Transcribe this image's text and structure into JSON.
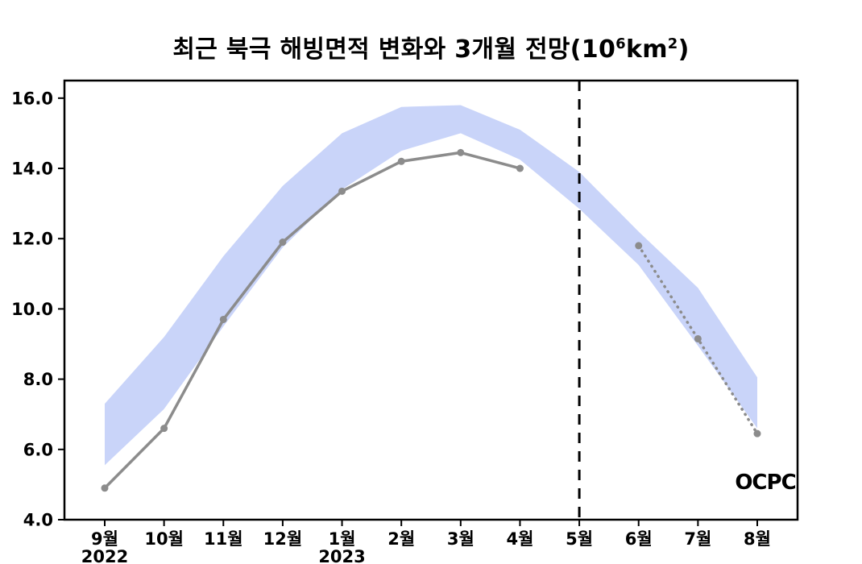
{
  "title": {
    "text_main": "최근 북극 해빙면적 변화와 3개월 전망(10",
    "sup1": "6",
    "text_mid": "km",
    "sup2": "2",
    "text_end": ")"
  },
  "logo": {
    "text": "OCPC"
  },
  "chart_data": {
    "type": "line",
    "title": "최근 북극 해빙면적 변화와 3개월 전망(10⁶km²)",
    "xlabel": "",
    "ylabel": "",
    "categories": [
      "9월",
      "10월",
      "11월",
      "12월",
      "1월",
      "2월",
      "3월",
      "4월",
      "5월",
      "6월",
      "7월",
      "8월"
    ],
    "x_year_labels": [
      {
        "index": 0,
        "label": "2022"
      },
      {
        "index": 4,
        "label": "2023"
      }
    ],
    "ylim": [
      4.0,
      16.5
    ],
    "yticks": [
      4.0,
      6.0,
      8.0,
      10.0,
      12.0,
      14.0,
      16.0
    ],
    "series": [
      {
        "name": "observed",
        "style": "solid",
        "values": [
          4.9,
          6.6,
          9.7,
          11.9,
          13.35,
          14.2,
          14.45,
          14.0,
          null,
          null,
          null,
          null
        ]
      },
      {
        "name": "forecast",
        "style": "dotted",
        "values": [
          null,
          null,
          null,
          null,
          null,
          null,
          null,
          null,
          null,
          11.8,
          9.15,
          6.45
        ]
      }
    ],
    "band": {
      "name": "climatology-range",
      "upper": [
        7.3,
        9.2,
        11.5,
        13.5,
        15.0,
        15.75,
        15.8,
        15.1,
        13.9,
        12.2,
        10.6,
        8.05
      ],
      "lower": [
        5.55,
        7.15,
        9.5,
        11.75,
        13.4,
        14.5,
        15.0,
        14.25,
        12.85,
        11.25,
        8.95,
        6.6
      ]
    },
    "forecast_divider_index": 8,
    "grid": false,
    "legend": "none",
    "colors": {
      "band": "#c9d4f9",
      "line": "#8c8c8c",
      "divider": "#000000",
      "logo_blue_dark": "#0b3d7c",
      "logo_blue_mid": "#1b74c5",
      "logo_blue_light": "#53aee6"
    }
  }
}
